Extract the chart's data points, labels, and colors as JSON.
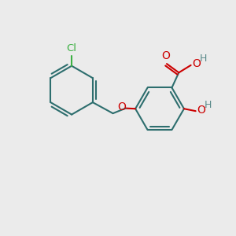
{
  "bg_color": "#ebebeb",
  "bond_color": "#2d6e6e",
  "cl_color": "#3cb043",
  "o_color": "#cc0000",
  "h_color": "#5a8a8a",
  "bond_width": 1.5,
  "figsize": [
    3.0,
    3.0
  ],
  "dpi": 100,
  "xlim": [
    0,
    10
  ],
  "ylim": [
    0,
    10
  ]
}
